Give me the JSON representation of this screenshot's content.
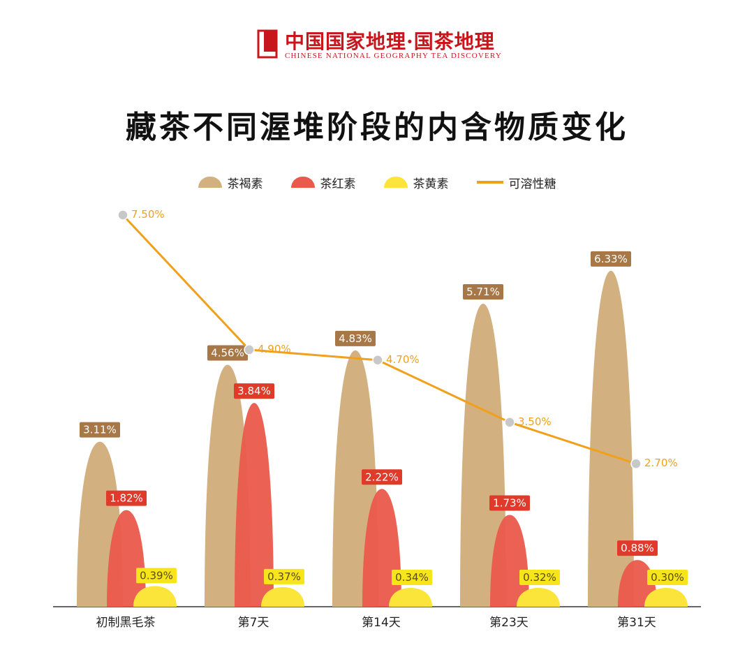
{
  "brand": {
    "name_cn": "中国国家地理·国茶地理",
    "name_en": "CHINESE NATIONAL GEOGRAPHY TEA DISCOVERY"
  },
  "chart_data": {
    "type": "bar",
    "title": "藏茶不同渥堆阶段的内含物质变化",
    "categories": [
      "初制黑毛茶",
      "第7天",
      "第14天",
      "第23天",
      "第31天"
    ],
    "series": [
      {
        "name": "茶褐素",
        "kind": "bar",
        "color": "#d3b07f",
        "label_color": "#a87748",
        "values": [
          3.11,
          4.56,
          4.83,
          5.71,
          6.33
        ],
        "labels": [
          "3.11%",
          "4.56%",
          "4.83%",
          "5.71%",
          "6.33%"
        ]
      },
      {
        "name": "茶红素",
        "kind": "bar",
        "color": "#ea5a4c",
        "label_color": "#df3a2a",
        "values": [
          1.82,
          3.84,
          2.22,
          1.73,
          0.88
        ],
        "labels": [
          "1.82%",
          "3.84%",
          "2.22%",
          "1.73%",
          "0.88%"
        ]
      },
      {
        "name": "茶黄素",
        "kind": "bar",
        "color": "#fbe53a",
        "label_color": "#f7e51b",
        "values": [
          0.39,
          0.37,
          0.34,
          0.32,
          0.3
        ],
        "labels": [
          "0.39%",
          "0.37%",
          "0.34%",
          "0.32%",
          "0.30%"
        ]
      },
      {
        "name": "可溶性糖",
        "kind": "line",
        "color": "#f0a01a",
        "values": [
          7.5,
          4.9,
          4.7,
          3.5,
          2.7
        ],
        "labels": [
          "7.50%",
          "4.90%",
          "4.70%",
          "3.50%",
          "2.70%"
        ]
      }
    ],
    "legend_position": "top-center",
    "grid": false
  }
}
